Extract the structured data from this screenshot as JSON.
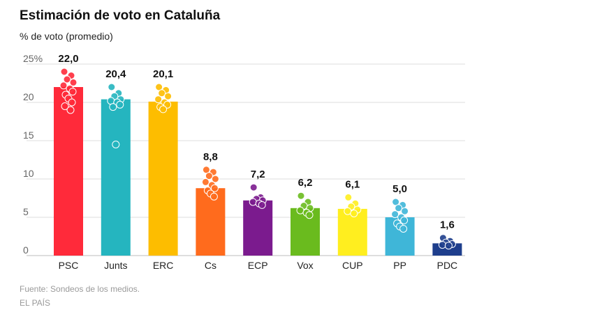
{
  "header": {
    "title": "Estimación de voto en Cataluña",
    "subtitle": "% de voto (promedio)"
  },
  "footer": {
    "source": "Fuente: Sondeos de los medios.",
    "credit": "EL PAÍS"
  },
  "chart_data": {
    "type": "bar",
    "title": "Estimación de voto en Cataluña",
    "subtitle": "% de voto (promedio)",
    "xlabel": "",
    "ylabel": "",
    "ylim": [
      0,
      25
    ],
    "yticks": [
      0,
      5,
      10,
      15,
      20,
      25
    ],
    "ytick_labels": [
      "0",
      "5",
      "10",
      "15",
      "20",
      "25%"
    ],
    "grid": true,
    "categories": [
      "PSC",
      "Junts",
      "ERC",
      "Cs",
      "ECP",
      "Vox",
      "CUP",
      "PP",
      "PDC"
    ],
    "values": [
      22.0,
      20.4,
      20.1,
      8.8,
      7.2,
      6.2,
      6.1,
      5.0,
      1.6
    ],
    "value_labels": [
      "22,0",
      "20,4",
      "20,1",
      "8,8",
      "7,2",
      "6,2",
      "6,1",
      "5,0",
      "1,6"
    ],
    "colors": [
      "#ff2a3a",
      "#25b5bf",
      "#fdbd00",
      "#ff6b1d",
      "#7b1b8e",
      "#6abb1e",
      "#ffee1f",
      "#3fb6d8",
      "#1e3e8c"
    ],
    "poll_points": [
      [
        24.0,
        23.5,
        23.0,
        22.6,
        22.2,
        21.8,
        21.4,
        21.0,
        20.5,
        20.0,
        19.5,
        19.0
      ],
      [
        22.0,
        21.2,
        20.8,
        20.4,
        20.2,
        20.0,
        19.7,
        19.4,
        14.5
      ],
      [
        22.0,
        21.6,
        21.2,
        20.8,
        20.4,
        20.0,
        19.7,
        19.4,
        19.1
      ],
      [
        11.2,
        10.9,
        10.4,
        10.0,
        9.6,
        9.2,
        8.8,
        8.5,
        8.1,
        7.7
      ],
      [
        8.9,
        7.6,
        7.4,
        7.2,
        7.0,
        6.8,
        6.6
      ],
      [
        7.8,
        7.0,
        6.5,
        6.2,
        5.9,
        5.6,
        5.3
      ],
      [
        7.6,
        6.8,
        6.4,
        6.0,
        5.8,
        5.5
      ],
      [
        7.0,
        6.6,
        6.2,
        5.8,
        5.4,
        5.0,
        4.6,
        4.2,
        3.8,
        3.5
      ],
      [
        2.3,
        1.9,
        1.7,
        1.5,
        1.4,
        1.3
      ]
    ]
  }
}
